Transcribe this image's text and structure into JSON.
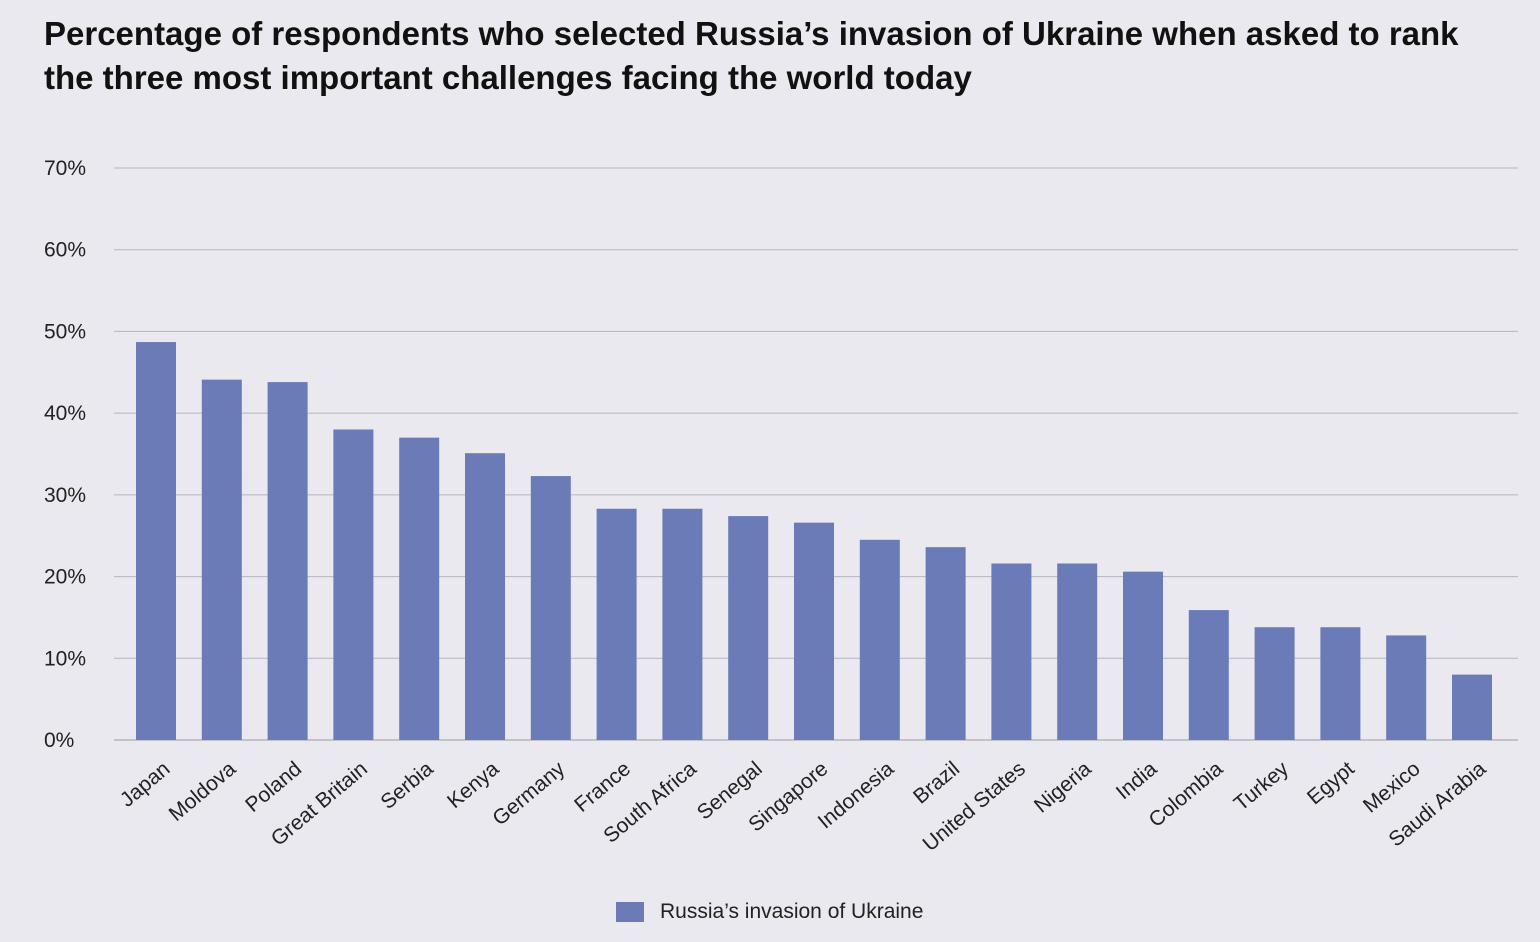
{
  "chart_data": {
    "type": "bar",
    "title": "Percentage of respondents who selected Russia’s invasion of Ukraine when asked to rank the three most important challenges facing the world today",
    "xlabel": "",
    "ylabel": "",
    "ylim": [
      0,
      70
    ],
    "yticks": [
      0,
      10,
      20,
      30,
      40,
      50,
      60,
      70
    ],
    "ytick_labels": [
      "0%",
      "10%",
      "20%",
      "30%",
      "40%",
      "50%",
      "60%",
      "70%"
    ],
    "grid": true,
    "legend_position": "bottom-center",
    "categories": [
      "Japan",
      "Moldova",
      "Poland",
      "Great Britain",
      "Serbia",
      "Kenya",
      "Germany",
      "France",
      "South Africa",
      "Senegal",
      "Singapore",
      "Indonesia",
      "Brazil",
      "United States",
      "Nigeria",
      "India",
      "Colombia",
      "Turkey",
      "Egypt",
      "Mexico",
      "Saudi Arabia"
    ],
    "series": [
      {
        "name": "Russia’s invasion of Ukraine",
        "color": "#6a7bb8",
        "values": [
          48.7,
          44.1,
          43.8,
          38.0,
          37.0,
          35.1,
          32.3,
          28.3,
          28.3,
          27.4,
          26.6,
          24.5,
          23.6,
          21.6,
          21.6,
          20.6,
          15.9,
          13.8,
          13.8,
          12.8,
          8.0
        ]
      }
    ]
  }
}
